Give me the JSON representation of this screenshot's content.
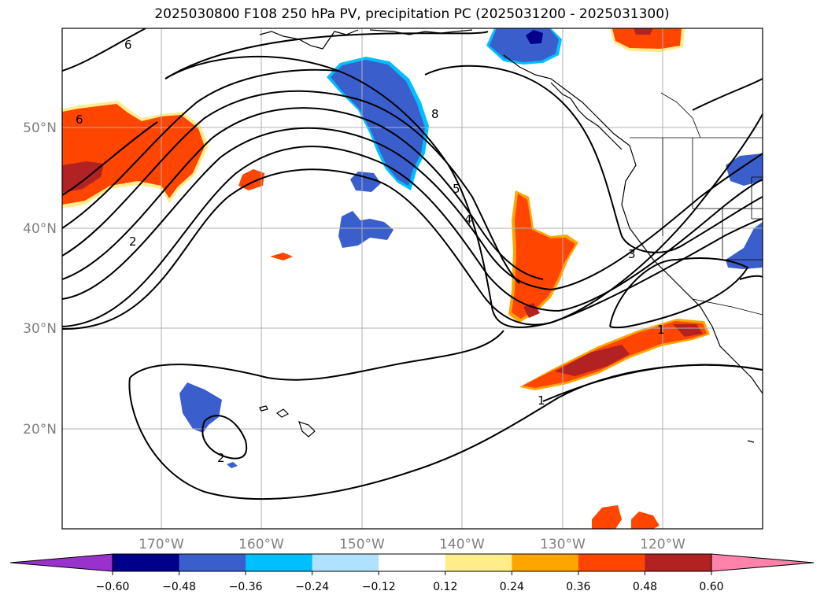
{
  "title": "2025030800 F108 250 hPa PV, precipitation PC (2025031200 - 2025031300)",
  "lat_labels": [
    "50°N",
    "40°N",
    "30°N",
    "20°N"
  ],
  "lon_labels": [
    "170°W",
    "160°W",
    "150°W",
    "140°W",
    "130°W",
    "120°W"
  ],
  "contour_labels": [
    "6",
    "6",
    "2",
    "8",
    "5",
    "4",
    "3",
    "1",
    "1",
    "2"
  ],
  "colorbar": {
    "ticks": [
      "−0.60",
      "−0.48",
      "−0.36",
      "−0.24",
      "−0.12",
      "0.12",
      "0.24",
      "0.36",
      "0.48",
      "0.60"
    ],
    "colors": [
      "#9932cc",
      "#00008b",
      "#3a5fcd",
      "#00bfff",
      "#b0e2ff",
      "#ffffff",
      "#ffec8b",
      "#ffa500",
      "#ff4500",
      "#b22222",
      "#ff82ab"
    ]
  }
}
